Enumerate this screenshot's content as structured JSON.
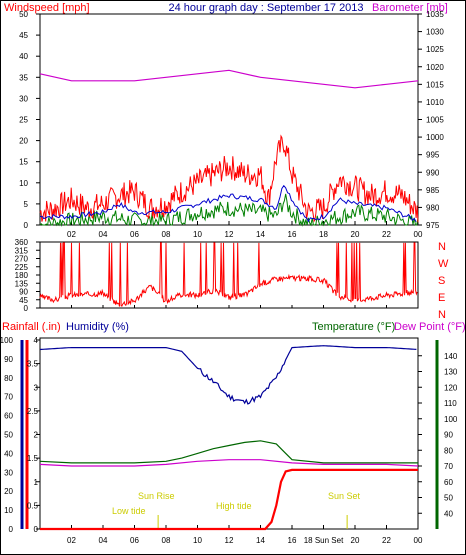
{
  "colors": {
    "frame": "#000000",
    "windspeed": "#ff0000",
    "windavg": "#0000cc",
    "windlow": "#008000",
    "barometer": "#cc00cc",
    "direction": "#ff0000",
    "rain": "#ff0000",
    "humidity": "#000099",
    "temperature": "#006600",
    "dewpoint": "#cc00cc",
    "tide": "#cccc00",
    "title_blue": "#000099",
    "grid": "#999999"
  },
  "header": {
    "left_title": "Windspeed [mph]",
    "center_title": "24 hour graph day : September 17 2013",
    "right_title": "Barometer [mb]"
  },
  "time_ticks": [
    "02",
    "04",
    "06",
    "08",
    "10",
    "12",
    "14",
    "16",
    "18",
    "20",
    "22",
    "00"
  ],
  "bottom_time_ticks": [
    "02",
    "04",
    "06",
    "08",
    "10",
    "12",
    "14",
    "16",
    "18 Sun Set",
    "20",
    "22",
    "00"
  ],
  "chart_data": [
    {
      "type": "line",
      "title": "Windspeed [mph] / Barometer [mb]",
      "x_label": "",
      "left_axis": {
        "label": "Windspeed [mph]",
        "ylim": [
          0,
          50
        ],
        "ticks": [
          0,
          5,
          10,
          15,
          20,
          25,
          30,
          35,
          40,
          45,
          50
        ]
      },
      "right_axis": {
        "label": "Barometer [mb]",
        "ylim": [
          975,
          1035
        ],
        "ticks": [
          975,
          980,
          985,
          990,
          995,
          1000,
          1005,
          1010,
          1015,
          1020,
          1025,
          1030,
          1035
        ]
      },
      "series": [
        {
          "name": "Windspeed",
          "axis": "left",
          "x": [
            0,
            1,
            2,
            3,
            4,
            5,
            6,
            7,
            8,
            9,
            10,
            11,
            12,
            13,
            14,
            14.5,
            15,
            15.5,
            16,
            17,
            18,
            19,
            20,
            21,
            22,
            23,
            24
          ],
          "values": [
            3,
            4,
            6,
            4,
            5,
            7,
            8,
            4,
            5,
            8,
            10,
            12,
            14,
            12,
            12,
            6,
            16,
            20,
            12,
            3,
            4,
            11,
            9,
            7,
            8,
            7,
            3
          ]
        },
        {
          "name": "Wind average",
          "axis": "left",
          "x": [
            0,
            2,
            4,
            5,
            6,
            8,
            10,
            12,
            14,
            15,
            15.5,
            16,
            17,
            18,
            19,
            20,
            22,
            24
          ],
          "values": [
            2,
            2,
            3,
            5,
            3,
            3,
            5,
            7,
            6,
            4,
            10,
            6,
            1,
            2,
            6,
            5,
            4,
            1
          ]
        },
        {
          "name": "Wind low",
          "axis": "left",
          "x": [
            0,
            2,
            4,
            6,
            8,
            10,
            12,
            14,
            15,
            15.5,
            16,
            17,
            18,
            20,
            22,
            24
          ],
          "values": [
            0,
            1,
            2,
            1,
            1,
            3,
            4,
            3,
            2,
            6,
            3,
            0,
            1,
            3,
            2,
            0
          ]
        },
        {
          "name": "Barometer",
          "axis": "right",
          "x": [
            0,
            2,
            4,
            6,
            8,
            10,
            12,
            14,
            16,
            18,
            20,
            22,
            24
          ],
          "values": [
            1018,
            1016,
            1016,
            1016,
            1017,
            1018,
            1019,
            1017,
            1016,
            1015,
            1014,
            1015,
            1016
          ]
        }
      ]
    },
    {
      "type": "line",
      "title": "Wind direction",
      "left_axis": {
        "ylim": [
          0,
          360
        ],
        "ticks": [
          0,
          45,
          90,
          135,
          180,
          225,
          270,
          315,
          360
        ]
      },
      "right_axis_labels": [
        "N",
        "W",
        "S",
        "E",
        "N"
      ],
      "series": [
        {
          "name": "Direction",
          "x": [
            0,
            1,
            2,
            3,
            4,
            5,
            6,
            7,
            8,
            9,
            10,
            11,
            12,
            13,
            14,
            15,
            16,
            17,
            18,
            19,
            20,
            21,
            22,
            23,
            24
          ],
          "values": [
            60,
            45,
            70,
            75,
            80,
            20,
            40,
            120,
            35,
            75,
            70,
            95,
            60,
            70,
            130,
            160,
            165,
            160,
            150,
            60,
            40,
            55,
            70,
            80,
            90
          ]
        }
      ]
    },
    {
      "type": "line",
      "title": "Rainfall / Humidity / Temperature / Dew Point",
      "axes": {
        "rainfall": {
          "label": "Rainfall (.in)",
          "ylim": [
            0,
            4
          ],
          "ticks": [
            0,
            0.5,
            1,
            1.5,
            2,
            2.5,
            3,
            3.5,
            4
          ]
        },
        "humidity": {
          "label": "Humidity (%)",
          "ylim": [
            0,
            100
          ],
          "ticks": [
            0,
            10,
            20,
            30,
            40,
            50,
            60,
            70,
            80,
            90,
            100
          ]
        },
        "temperature": {
          "label": "Temperature (°F)",
          "ylim": [
            30,
            150
          ],
          "ticks": [
            40,
            50,
            60,
            70,
            80,
            90,
            100,
            110,
            120,
            130,
            140
          ]
        },
        "dewpoint_label": "Dew Point (°F)"
      },
      "series": [
        {
          "name": "Humidity",
          "axis": "humidity",
          "x": [
            0,
            2,
            4,
            6,
            8,
            9,
            10,
            11,
            12,
            13,
            14,
            15,
            16,
            18,
            20,
            22,
            24
          ],
          "values": [
            95,
            96,
            96,
            96,
            96,
            94,
            85,
            78,
            70,
            67,
            70,
            80,
            96,
            97,
            96,
            96,
            95
          ]
        },
        {
          "name": "Temperature",
          "axis": "temperature",
          "x": [
            0,
            2,
            4,
            6,
            8,
            9,
            10,
            11,
            12,
            13,
            14,
            15,
            15.5,
            16,
            18,
            20,
            22,
            24
          ],
          "values": [
            73,
            72,
            72,
            72,
            73,
            75,
            78,
            81,
            83,
            85,
            86,
            84,
            79,
            74,
            72,
            72,
            72,
            72
          ]
        },
        {
          "name": "Dew Point",
          "axis": "temperature",
          "x": [
            0,
            2,
            4,
            6,
            8,
            10,
            12,
            14,
            16,
            18,
            20,
            22,
            24
          ],
          "values": [
            71,
            70,
            70,
            70,
            71,
            73,
            74,
            74,
            72,
            71,
            71,
            71,
            70
          ]
        },
        {
          "name": "Rainfall",
          "axis": "rainfall",
          "x": [
            0,
            14.3,
            14.7,
            15,
            15.3,
            15.6,
            16,
            24
          ],
          "values": [
            0,
            0,
            0.15,
            0.5,
            1.0,
            1.22,
            1.25,
            1.25
          ]
        }
      ],
      "annotations": {
        "low_tide": "Low tide",
        "sun_rise": "Sun Rise",
        "high_tide": "High tide",
        "sun_set": "Sun Set"
      }
    }
  ]
}
